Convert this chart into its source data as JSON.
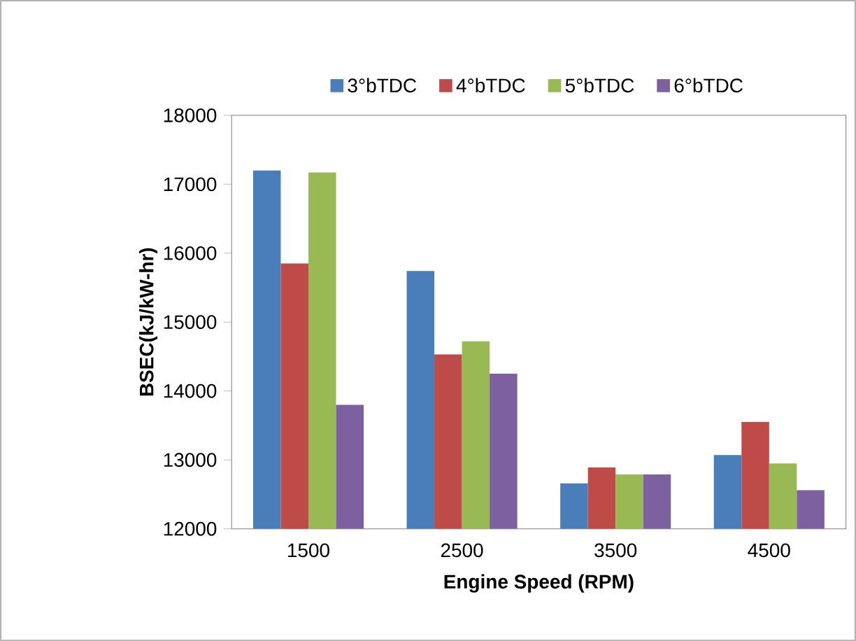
{
  "chart_data": {
    "type": "bar",
    "xlabel": "Engine Speed (RPM)",
    "ylabel": "BSEC(kJ/kW-hr)",
    "categories": [
      "1500",
      "2500",
      "3500",
      "4500"
    ],
    "series": [
      {
        "name": "3°bTDC",
        "color": "#4a7ebb",
        "values": [
          17200,
          15740,
          12660,
          13070
        ]
      },
      {
        "name": "4°bTDC",
        "color": "#be4b48",
        "values": [
          15850,
          14530,
          12890,
          13550
        ]
      },
      {
        "name": "5°bTDC",
        "color": "#98b954",
        "values": [
          17170,
          14720,
          12790,
          12950
        ]
      },
      {
        "name": "6°bTDC",
        "color": "#7d60a0",
        "values": [
          13800,
          14250,
          12790,
          12560
        ]
      }
    ],
    "ylim": [
      12000,
      18000
    ],
    "yticks": [
      12000,
      13000,
      14000,
      15000,
      16000,
      17000,
      18000
    ],
    "legend": "top",
    "grid": false
  }
}
